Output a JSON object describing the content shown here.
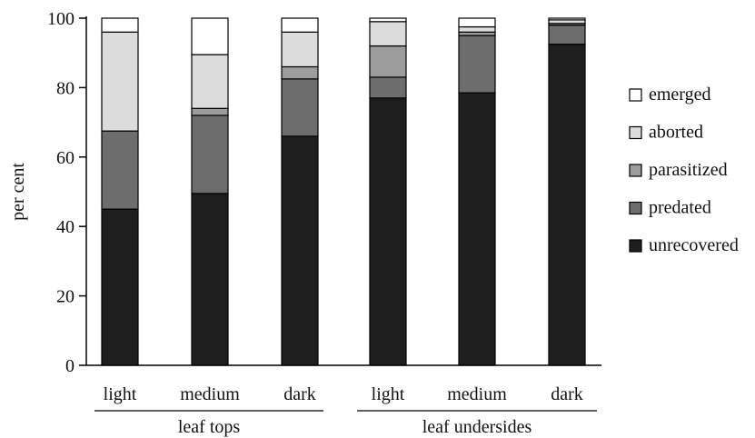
{
  "chart_data": {
    "type": "bar",
    "stacked": true,
    "title": "",
    "xlabel": "",
    "ylabel": "per cent",
    "ylim": [
      0,
      100
    ],
    "yticks": [
      0,
      20,
      40,
      60,
      80,
      100
    ],
    "categories": [
      "light",
      "medium",
      "dark",
      "light",
      "medium",
      "dark"
    ],
    "groups": [
      {
        "label": "leaf tops",
        "categories": [
          0,
          1,
          2
        ]
      },
      {
        "label": "leaf undersides",
        "categories": [
          3,
          4,
          5
        ]
      }
    ],
    "series": [
      {
        "name": "unrecovered",
        "color": "#1e1e1e",
        "values": [
          45,
          49.5,
          66,
          77,
          78.5,
          92.5
        ]
      },
      {
        "name": "predated",
        "color": "#6d6d6d",
        "values": [
          22.5,
          22.5,
          16.5,
          6,
          16.5,
          5.5
        ]
      },
      {
        "name": "parasitized",
        "color": "#9c9c9c",
        "values": [
          0,
          2,
          3.5,
          9,
          1,
          0.5
        ]
      },
      {
        "name": "aborted",
        "color": "#dcdcdc",
        "values": [
          28.5,
          15.5,
          10,
          7,
          1.5,
          1
        ]
      },
      {
        "name": "emerged",
        "color": "#ffffff",
        "values": [
          4,
          10.5,
          4,
          1,
          2.5,
          0.5
        ]
      }
    ],
    "legend": {
      "position": "right",
      "order": [
        "emerged",
        "aborted",
        "parasitized",
        "predated",
        "unrecovered"
      ]
    },
    "grid": false
  }
}
